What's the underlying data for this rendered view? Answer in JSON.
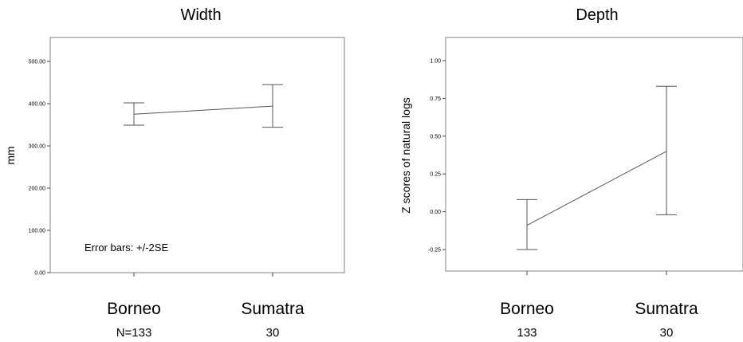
{
  "chart_data": [
    {
      "type": "line",
      "title": "Width",
      "xlabel": "",
      "ylabel": "mm",
      "categories": [
        "Borneo",
        "Sumatra"
      ],
      "n_labels": [
        "N=133",
        "30"
      ],
      "ylim": [
        0,
        500
      ],
      "yticks": [
        "0.00",
        "100.00",
        "200.00",
        "300.00",
        "400.00",
        "500.00"
      ],
      "series": [
        {
          "values": [
            375,
            394
          ],
          "error_low": [
            349,
            344
          ],
          "error_high": [
            402,
            445
          ]
        }
      ],
      "annotation": "Error bars: +/-2SE",
      "grid": false,
      "colors": {
        "line": "#555555",
        "frame": "#808080"
      }
    },
    {
      "type": "line",
      "title": "Depth",
      "xlabel": "",
      "ylabel": "Z scores of natural logs",
      "categories": [
        "Borneo",
        "Sumatra"
      ],
      "n_labels": [
        "133",
        "30"
      ],
      "ylim": [
        -0.3,
        1.1
      ],
      "yticks": [
        "-0.25",
        "0.00",
        "0.25",
        "0.50",
        "0.75",
        "1.00"
      ],
      "series": [
        {
          "values": [
            -0.09,
            0.4
          ],
          "error_low": [
            -0.25,
            -0.02
          ],
          "error_high": [
            0.08,
            0.83
          ]
        }
      ],
      "grid": false,
      "colors": {
        "line": "#555555",
        "frame": "#808080"
      }
    }
  ]
}
